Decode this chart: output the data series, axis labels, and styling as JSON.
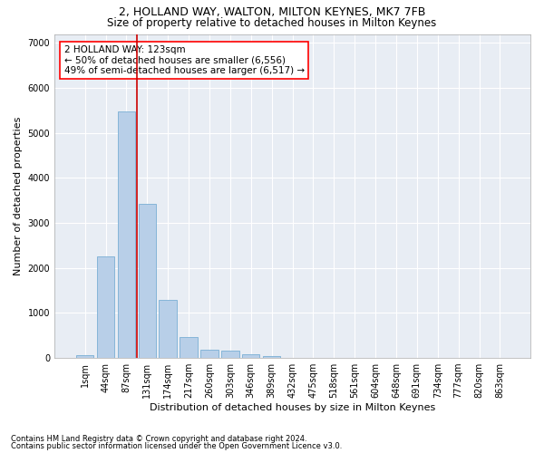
{
  "title": "2, HOLLAND WAY, WALTON, MILTON KEYNES, MK7 7FB",
  "subtitle": "Size of property relative to detached houses in Milton Keynes",
  "xlabel": "Distribution of detached houses by size in Milton Keynes",
  "ylabel": "Number of detached properties",
  "footnote1": "Contains HM Land Registry data © Crown copyright and database right 2024.",
  "footnote2": "Contains public sector information licensed under the Open Government Licence v3.0.",
  "bar_labels": [
    "1sqm",
    "44sqm",
    "87sqm",
    "131sqm",
    "174sqm",
    "217sqm",
    "260sqm",
    "303sqm",
    "346sqm",
    "389sqm",
    "432sqm",
    "475sqm",
    "518sqm",
    "561sqm",
    "604sqm",
    "648sqm",
    "691sqm",
    "734sqm",
    "777sqm",
    "820sqm",
    "863sqm"
  ],
  "bar_values": [
    70,
    2250,
    5480,
    3420,
    1300,
    460,
    185,
    155,
    80,
    50,
    0,
    0,
    0,
    0,
    0,
    0,
    0,
    0,
    0,
    0,
    0
  ],
  "bar_color": "#b8cfe8",
  "bar_edge_color": "#7aafd4",
  "vline_color": "#cc0000",
  "vline_x_index": 2.5,
  "annotation_text": "2 HOLLAND WAY: 123sqm\n← 50% of detached houses are smaller (6,556)\n49% of semi-detached houses are larger (6,517) →",
  "ylim": [
    0,
    7200
  ],
  "yticks": [
    0,
    1000,
    2000,
    3000,
    4000,
    5000,
    6000,
    7000
  ],
  "bg_color": "#e8edf4",
  "title_fontsize": 9,
  "subtitle_fontsize": 8.5,
  "xlabel_fontsize": 8,
  "ylabel_fontsize": 8,
  "tick_fontsize": 7,
  "footnote_fontsize": 6
}
